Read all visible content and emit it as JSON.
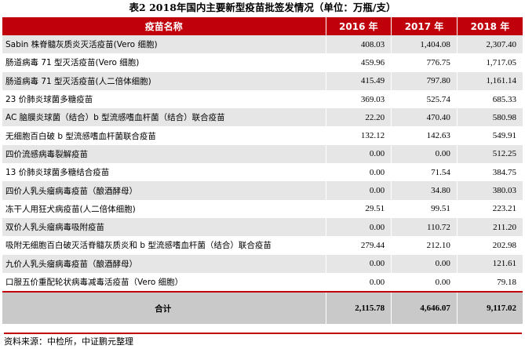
{
  "title": "表2  2018年国内主要新型疫苗批签发情况（单位：万瓶/支）",
  "table": {
    "headers": [
      "疫苗名称",
      "2016 年",
      "2017 年",
      "2018 年"
    ],
    "rows": [
      {
        "name": "Sabin 株脊髓灰质炎灭活疫苗(Vero 细胞)",
        "v2016": "408.03",
        "v2017": "1,404.08",
        "v2018": "2,307.40"
      },
      {
        "name": "肠道病毒 71 型灭活疫苗(Vero 细胞)",
        "v2016": "459.96",
        "v2017": "776.75",
        "v2018": "1,717.05"
      },
      {
        "name": "肠道病毒 71 型灭活疫苗(人二倍体细胞)",
        "v2016": "415.49",
        "v2017": "797.80",
        "v2018": "1,161.14"
      },
      {
        "name": "23 价肺炎球菌多糖疫苗",
        "v2016": "369.03",
        "v2017": "525.74",
        "v2018": "685.33"
      },
      {
        "name": "AC 脑膜炎球菌（结合）b 型流感嗜血杆菌（结合）联合疫苗",
        "v2016": "22.20",
        "v2017": "470.40",
        "v2018": "580.98"
      },
      {
        "name": "无细胞百白破 b 型流感嗜血杆菌联合疫苗",
        "v2016": "132.12",
        "v2017": "142.63",
        "v2018": "549.91"
      },
      {
        "name": "四价流感病毒裂解疫苗",
        "v2016": "0.00",
        "v2017": "0.00",
        "v2018": "512.25"
      },
      {
        "name": "13 价肺炎球菌多糖结合疫苗",
        "v2016": "0.00",
        "v2017": "71.54",
        "v2018": "384.75"
      },
      {
        "name": "四价人乳头瘤病毒疫苗（酿酒酵母）",
        "v2016": "0.00",
        "v2017": "34.80",
        "v2018": "380.03"
      },
      {
        "name": "冻干人用狂犬病疫苗(人二倍体细胞)",
        "v2016": "29.51",
        "v2017": "99.51",
        "v2018": "223.21"
      },
      {
        "name": "双价人乳头瘤病毒吸附疫苗",
        "v2016": "0.00",
        "v2017": "110.72",
        "v2018": "211.20"
      },
      {
        "name": "吸附无细胞百白破灭活脊髓灰质炎和 b 型流感嗜血杆菌（结合）联合疫苗",
        "v2016": "279.44",
        "v2017": "212.10",
        "v2018": "202.98"
      },
      {
        "name": "九价人乳头瘤病毒疫苗（酿酒酵母）",
        "v2016": "0.00",
        "v2017": "0.00",
        "v2018": "121.61"
      },
      {
        "name": "口服五价重配轮状病毒减毒活疫苗（Vero 细胞）",
        "v2016": "0.00",
        "v2017": "0.00",
        "v2018": "79.18"
      }
    ],
    "total": {
      "label": "合计",
      "v2016": "2,115.78",
      "v2017": "4,646.07",
      "v2018": "9,117.02"
    }
  },
  "source": "资料来源：中检所，中证鹏元整理",
  "colors": {
    "header_bg": "#c0000b",
    "row_shade": "#e6e6e6",
    "total_bg": "#c9c9c9"
  }
}
